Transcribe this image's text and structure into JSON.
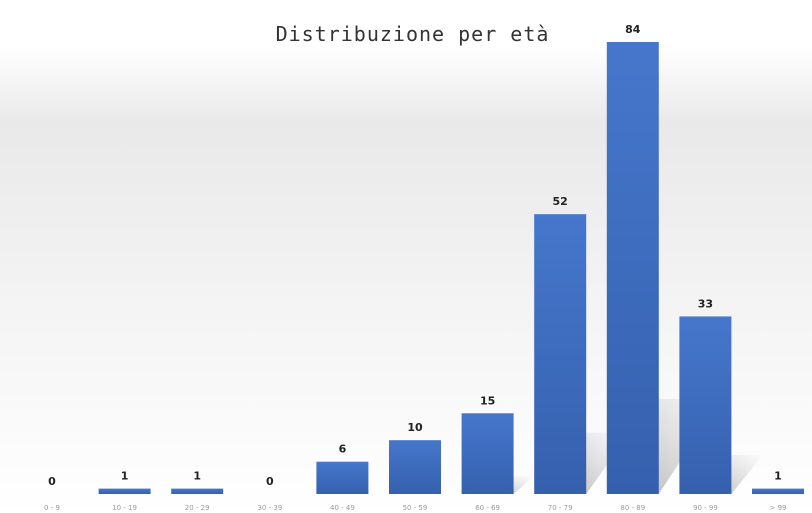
{
  "chart_data": {
    "type": "bar",
    "title": "Distribuzione per età",
    "categories": [
      "0 - 9",
      "10 - 19",
      "20 - 29",
      "30 - 39",
      "40 - 49",
      "50 - 59",
      "60 - 69",
      "70 - 79",
      "80 - 89",
      "90 - 99",
      "> 99"
    ],
    "values": [
      0,
      1,
      1,
      0,
      6,
      10,
      15,
      52,
      84,
      33,
      1
    ],
    "xlabel": "",
    "ylabel": "",
    "ylim": [
      0,
      84
    ],
    "grid": false,
    "legend": "none",
    "data_labels": true,
    "colors": {
      "bar": "#4472c4",
      "bar_dark": "#2f5597",
      "shadow": "#8c8c8c"
    }
  }
}
